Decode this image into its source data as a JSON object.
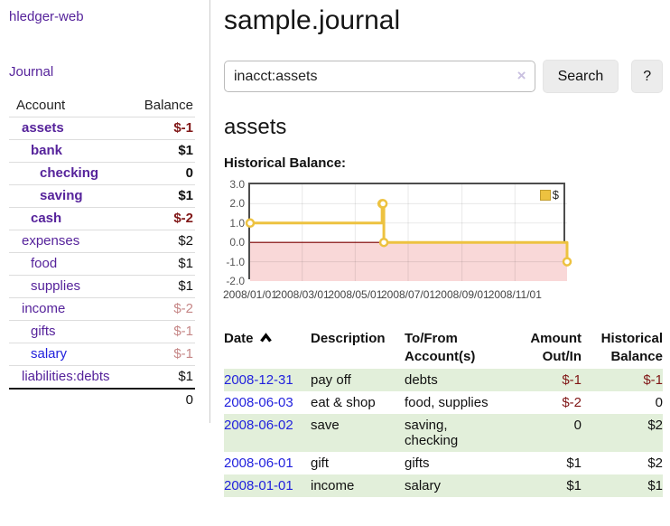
{
  "app": {
    "brand": "hledger-web",
    "nav_journal": "Journal"
  },
  "colors": {
    "link_purple": "#56239b",
    "link_blue": "#2222dd",
    "negative": "#801717",
    "negative_muted": "#c68787",
    "row_green": "#e2efda",
    "chart_gold": "#edc240",
    "chart_pink": "#f9d8d8",
    "chart_zero_red": "#7e0000",
    "chart_grid": "rgba(0,0,0,0.09)"
  },
  "sidebar": {
    "accounts_header": {
      "account": "Account",
      "balance": "Balance"
    },
    "accounts": [
      {
        "name": "assets",
        "indent": 0,
        "bold": true,
        "balance": "$-1",
        "balance_color": "negative"
      },
      {
        "name": "bank",
        "indent": 1,
        "bold": true,
        "balance": "$1"
      },
      {
        "name": "checking",
        "indent": 2,
        "bold": true,
        "balance": "0"
      },
      {
        "name": "saving",
        "indent": 2,
        "bold": true,
        "balance": "$1"
      },
      {
        "name": "cash",
        "indent": 1,
        "bold": true,
        "balance": "$-2",
        "balance_color": "negative"
      },
      {
        "name": "expenses",
        "indent": 0,
        "bold": false,
        "balance": "$2"
      },
      {
        "name": "food",
        "indent": 1,
        "bold": false,
        "balance": "$1"
      },
      {
        "name": "supplies",
        "indent": 1,
        "bold": false,
        "balance": "$1"
      },
      {
        "name": "income",
        "indent": 0,
        "bold": false,
        "balance": "$-2",
        "balance_color": "negative-muted"
      },
      {
        "name": "gifts",
        "indent": 1,
        "bold": false,
        "balance": "$-1",
        "balance_color": "negative-muted"
      },
      {
        "name": "salary",
        "indent": 1,
        "bold": false,
        "name_color": "blue",
        "balance": "$-1",
        "balance_color": "negative-muted"
      },
      {
        "name": "liabilities:debts",
        "indent": 0,
        "bold": false,
        "balance": "$1"
      }
    ],
    "total": "0"
  },
  "main": {
    "title": "sample.journal",
    "search": {
      "value": "inacct:assets",
      "clear_label": "×",
      "search_button": "Search",
      "help_button": "?"
    },
    "heading": "assets",
    "chart_label": "Historical Balance:"
  },
  "chart_data": {
    "type": "line",
    "step": true,
    "title": "Historical Balance:",
    "legend_label": "$",
    "legend_position": "top-right",
    "grid": true,
    "x_range": [
      "2008-01-01",
      "2008-12-31"
    ],
    "ylim": [
      -2,
      3
    ],
    "yticks": [
      {
        "v": 3,
        "label": "3.0"
      },
      {
        "v": 2,
        "label": "2.0"
      },
      {
        "v": 1,
        "label": "1.0"
      },
      {
        "v": 0,
        "label": "0.0"
      },
      {
        "v": -1,
        "label": "-1.0"
      },
      {
        "v": -2,
        "label": "-2.0"
      }
    ],
    "xticks": [
      {
        "x": "2008-01-01",
        "label": "2008/01/01"
      },
      {
        "x": "2008-03-01",
        "label": "2008/03/01"
      },
      {
        "x": "2008-05-01",
        "label": "2008/05/01"
      },
      {
        "x": "2008-07-01",
        "label": "2008/07/01"
      },
      {
        "x": "2008-09-01",
        "label": "2008/09/01"
      },
      {
        "x": "2008-11-01",
        "label": "2008/11/01"
      }
    ],
    "series": [
      {
        "name": "$",
        "points": [
          {
            "x": "2008-01-01",
            "y": 1
          },
          {
            "x": "2008-06-01",
            "y": 2
          },
          {
            "x": "2008-06-02",
            "y": 2
          },
          {
            "x": "2008-06-03",
            "y": 0
          },
          {
            "x": "2008-12-31",
            "y": -1
          }
        ]
      }
    ],
    "negative_region_shaded": true
  },
  "register": {
    "columns": [
      {
        "label": "Date",
        "sort": "asc"
      },
      {
        "label": "Description"
      },
      {
        "label": "To/From\nAccount(s)"
      },
      {
        "label": "Amount\nOut/In",
        "align": "right"
      },
      {
        "label": "Historical\nBalance",
        "align": "right"
      }
    ],
    "rows": [
      {
        "date": "2008-12-31",
        "description": "pay off",
        "accounts": "debts",
        "amount": "$-1",
        "amount_neg": true,
        "balance": "$-1",
        "balance_neg": true
      },
      {
        "date": "2008-06-03",
        "description": "eat & shop",
        "accounts": "food, supplies",
        "amount": "$-2",
        "amount_neg": true,
        "balance": "0",
        "balance_neg": false
      },
      {
        "date": "2008-06-02",
        "description": "save",
        "accounts": "saving, checking",
        "amount": "0",
        "amount_neg": false,
        "balance": "$2",
        "balance_neg": false
      },
      {
        "date": "2008-06-01",
        "description": "gift",
        "accounts": "gifts",
        "amount": "$1",
        "amount_neg": false,
        "balance": "$2",
        "balance_neg": false
      },
      {
        "date": "2008-01-01",
        "description": "income",
        "accounts": "salary",
        "amount": "$1",
        "amount_neg": false,
        "balance": "$1",
        "balance_neg": false
      }
    ]
  }
}
